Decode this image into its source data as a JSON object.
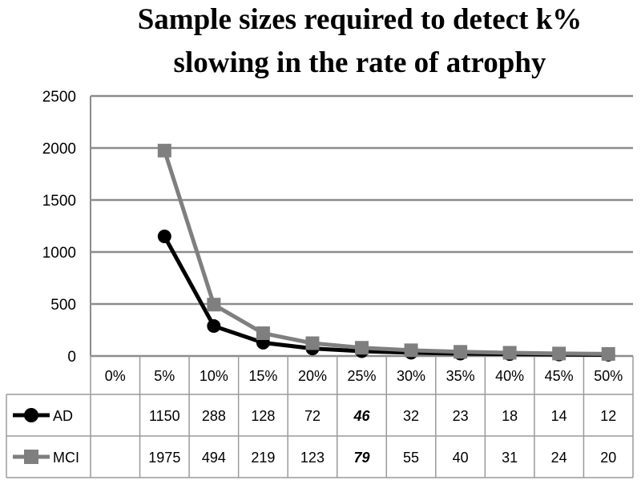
{
  "chart_data": {
    "type": "line",
    "title": "Sample sizes required to detect k% slowing in the rate of atrophy",
    "title_lines": [
      "Sample sizes required to detect k%",
      "slowing in the rate of atrophy"
    ],
    "categories": [
      "0%",
      "5%",
      "10%",
      "15%",
      "20%",
      "25%",
      "30%",
      "35%",
      "40%",
      "45%",
      "50%"
    ],
    "ylim": [
      0,
      2500
    ],
    "yticks": [
      0,
      500,
      1000,
      1500,
      2000,
      2500
    ],
    "grid": true,
    "legend": "data-table",
    "series": [
      {
        "name": "AD",
        "marker": "circle",
        "color": "#000000",
        "values": [
          null,
          1150,
          288,
          128,
          72,
          46,
          32,
          23,
          18,
          14,
          12
        ],
        "labels": [
          "",
          "1150",
          "288",
          "128",
          "72",
          "46",
          "32",
          "23",
          "18",
          "14",
          "12"
        ]
      },
      {
        "name": "MCI",
        "marker": "square",
        "color": "#7f7f7f",
        "values": [
          null,
          1975,
          494,
          219,
          123,
          79,
          55,
          40,
          31,
          24,
          20
        ],
        "labels": [
          "",
          "1975",
          "494",
          "219",
          "123",
          "79",
          "55",
          "40",
          "31",
          "24",
          "20"
        ]
      }
    ],
    "emphasized_category": "25%"
  }
}
